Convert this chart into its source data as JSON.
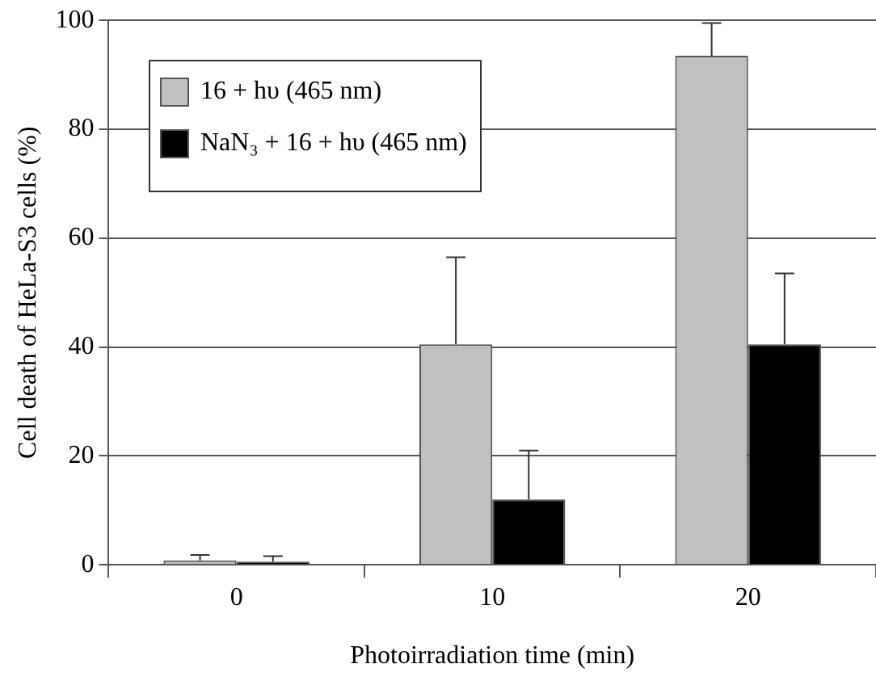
{
  "chart_data": {
    "type": "bar",
    "xlabel": "Photoirradiation time (min)",
    "ylabel": "Cell death of HeLa-S3 cells (%)",
    "categories": [
      "0",
      "10",
      "20"
    ],
    "series": [
      {
        "name": "16 + hυ (465 nm)",
        "color": "#c0c0c0",
        "values": [
          0.8,
          40.5,
          93.5
        ],
        "errors": [
          [
            0.8,
            1.8
          ],
          [
            40.5,
            56.5
          ],
          [
            93.5,
            99.5
          ]
        ]
      },
      {
        "name": "NaN₃ + 16 + hυ (465 nm)",
        "color": "#000000",
        "values": [
          0.6,
          12,
          40.5
        ],
        "errors": [
          [
            0.6,
            1.6
          ],
          [
            12,
            21
          ],
          [
            40.5,
            53.5
          ]
        ]
      }
    ],
    "ylim": [
      0,
      100
    ],
    "yticks": [
      0,
      20,
      40,
      60,
      80,
      100
    ],
    "grid": "y",
    "legend": "top left"
  }
}
